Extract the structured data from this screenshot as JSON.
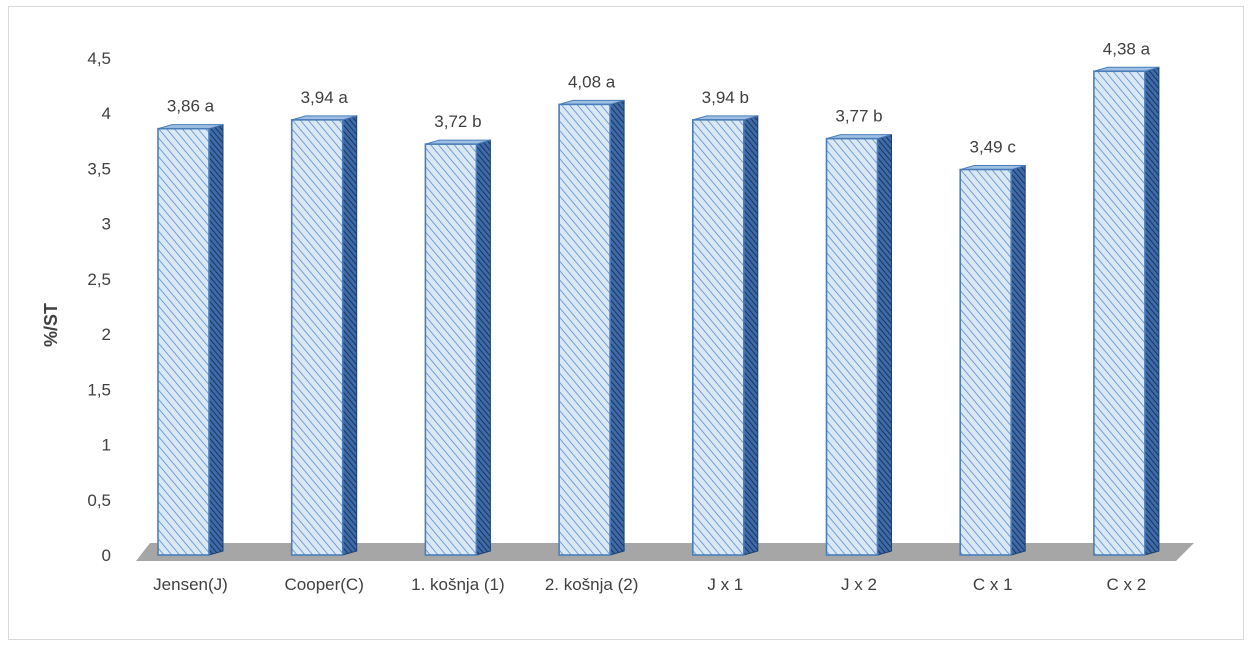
{
  "chart_data": {
    "type": "bar",
    "title": "",
    "xlabel": "",
    "ylabel": "%/ST",
    "categories": [
      "Jensen(J)",
      "Cooper(C)",
      "1. košnja (1)",
      "2. košnja (2)",
      "J x 1",
      "J x 2",
      "C x 1",
      "C x 2"
    ],
    "values": [
      3.86,
      3.94,
      3.72,
      4.08,
      3.94,
      3.77,
      3.49,
      4.38
    ],
    "data_labels": [
      "3,86 a",
      "3,94 a",
      "3,72 b",
      "4,08 a",
      "3,94 b",
      "3,77 b",
      "3,49 c",
      "4,38 a"
    ],
    "y_ticks": [
      0,
      0.5,
      1,
      1.5,
      2,
      2.5,
      3,
      3.5,
      4,
      4.5
    ],
    "y_tick_labels": [
      "0",
      "0,5",
      "1",
      "1,5",
      "2",
      "2,5",
      "3",
      "3,5",
      "4",
      "4,5"
    ],
    "ylim": [
      0,
      4.5
    ],
    "grid": false,
    "legend": "none",
    "style": "3d-column",
    "colors": {
      "bar_fill": "#dae8f6",
      "hatch": "#5b8cc8",
      "bar_edge": "#4a7ebb",
      "bar_side": "#1f3f6a",
      "floor": "#a6a6a6"
    }
  }
}
